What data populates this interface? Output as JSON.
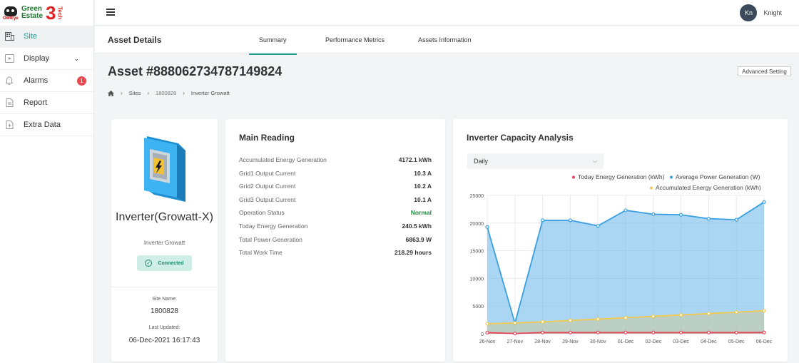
{
  "brand": {
    "name_line1": "Green",
    "name_line2": "Estate",
    "number": "3",
    "suffix": "Tech",
    "owl_label": "OwlEye"
  },
  "sidebar": {
    "items": [
      {
        "label": "Site",
        "icon": "building-icon",
        "active": true
      },
      {
        "label": "Display",
        "icon": "display-icon",
        "has_chevron": true
      },
      {
        "label": "Alarms",
        "icon": "bell-icon",
        "badge": "1"
      },
      {
        "label": "Report",
        "icon": "file-icon"
      },
      {
        "label": "Extra Data",
        "icon": "file-plus-icon"
      }
    ]
  },
  "header": {
    "user_initials": "Kn",
    "user_name": "Knight"
  },
  "tabs_bar": {
    "section_title": "Asset Details",
    "tabs": [
      {
        "label": "Summary",
        "active": true
      },
      {
        "label": "Performance Metrics"
      },
      {
        "label": "Assets Information"
      }
    ]
  },
  "page": {
    "title": "Asset #888062734787149824",
    "advanced_setting": "Advanced Setting",
    "breadcrumb": [
      "Sites",
      "1800828",
      "Inverter Growatt"
    ]
  },
  "device": {
    "name": "Inverter(Growatt-X)",
    "subtitle": "Inverter Growatt",
    "status": "Connected",
    "site_name_label": "Site Name:",
    "site_name": "1800828",
    "last_updated_label": "Last Updated:",
    "last_updated": "06-Dec-2021 16:17:43"
  },
  "main_reading": {
    "title": "Main Reading",
    "rows": [
      {
        "label": "Accumulated Energy Generation",
        "value": "4172.1 kWh"
      },
      {
        "label": "Grid1 Output Current",
        "value": "10.3 A"
      },
      {
        "label": "Grid2 Output Current",
        "value": "10.2 A"
      },
      {
        "label": "Grid3 Output Current",
        "value": "10.1 A"
      },
      {
        "label": "Operation Status",
        "value": "Normal",
        "status": "ok"
      },
      {
        "label": "Today Energy Generation",
        "value": "240.5 kWh"
      },
      {
        "label": "Total Power Generation",
        "value": "6863.9 W"
      },
      {
        "label": "Total Work Time",
        "value": "218.29 hours"
      }
    ]
  },
  "capacity": {
    "title": "Inverter Capacity Analysis",
    "period": "Daily"
  },
  "chart_data": {
    "type": "area",
    "x": [
      "26-Nov",
      "27-Nov",
      "28-Nov",
      "29-Nov",
      "30-Nov",
      "01-Dec",
      "02-Dec",
      "03-Dec",
      "04-Dec",
      "05-Dec",
      "06-Dec"
    ],
    "ylim": [
      0,
      25000
    ],
    "yticks": [
      "0",
      "5000",
      "10000",
      "15000",
      "20000",
      "25000"
    ],
    "grid": true,
    "legend_position": "top-right",
    "series": [
      {
        "name": "Today Energy Generation (kWh)",
        "color": "#e8475a",
        "values": [
          200,
          50,
          230,
          230,
          230,
          230,
          230,
          230,
          230,
          230,
          240
        ]
      },
      {
        "name": "Average Power Generation (W)",
        "color": "#3a9fe0",
        "values": [
          19300,
          1900,
          20500,
          20500,
          19500,
          22300,
          21600,
          21500,
          20800,
          20600,
          23800
        ]
      },
      {
        "name": "Accumulated Energy Generation (kWh)",
        "color": "#f2c94c",
        "values": [
          1800,
          1950,
          2150,
          2400,
          2650,
          2900,
          3150,
          3400,
          3650,
          3900,
          4172
        ]
      }
    ]
  }
}
